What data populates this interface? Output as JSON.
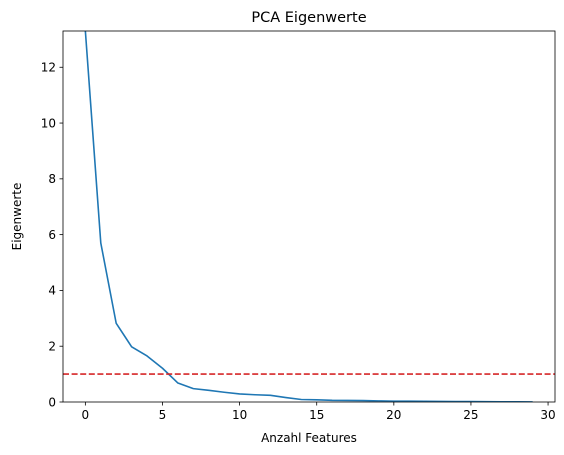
{
  "chart_data": {
    "type": "line",
    "title": "PCA Eigenwerte",
    "xlabel": "Anzahl Features",
    "ylabel": "Eigenwerte",
    "xlim": [
      -1.45,
      30.45
    ],
    "ylim": [
      0,
      13.3
    ],
    "xticks": [
      0,
      5,
      10,
      15,
      20,
      25,
      30
    ],
    "yticks": [
      0,
      2,
      4,
      6,
      8,
      10,
      12
    ],
    "grid": false,
    "series": [
      {
        "color": "#1f77b4",
        "x": [
          0,
          1,
          2,
          3,
          4,
          5,
          6,
          7,
          8,
          9,
          10,
          11,
          12,
          13,
          14,
          15,
          16,
          17,
          18,
          19,
          20,
          21,
          22,
          23,
          24,
          25,
          26,
          27,
          28,
          29
        ],
        "y": [
          13.3,
          5.7,
          2.82,
          1.98,
          1.65,
          1.21,
          0.68,
          0.48,
          0.42,
          0.35,
          0.29,
          0.26,
          0.24,
          0.16,
          0.09,
          0.08,
          0.06,
          0.055,
          0.05,
          0.04,
          0.03,
          0.028,
          0.025,
          0.022,
          0.018,
          0.015,
          0.012,
          0.008,
          0.005,
          0.003
        ]
      }
    ],
    "reference_line": {
      "orientation": "horizontal",
      "y": 1,
      "color": "#d62728",
      "style": "dashed"
    }
  }
}
